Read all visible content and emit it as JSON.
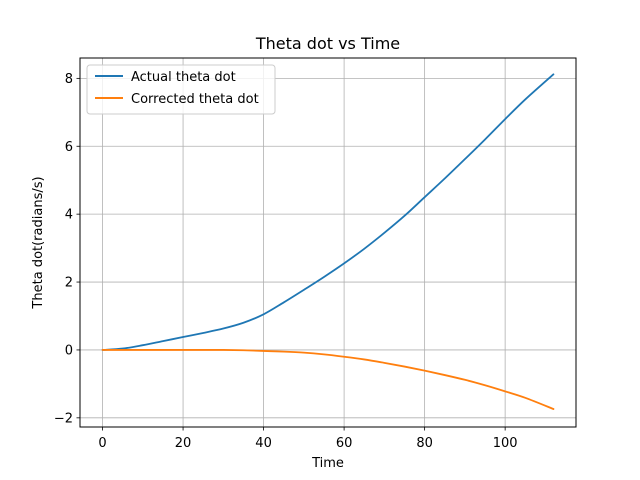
{
  "chart_data": {
    "type": "line",
    "title": "Theta dot vs Time",
    "xlabel": "Time",
    "ylabel": "Theta dot(radians/s)",
    "xlim": [
      -5.6,
      117.6
    ],
    "ylim": [
      -2.27,
      8.6
    ],
    "xticks": [
      0,
      20,
      40,
      60,
      80,
      100
    ],
    "yticks": [
      -2,
      0,
      2,
      4,
      6,
      8
    ],
    "xtick_labels": [
      "0",
      "20",
      "40",
      "60",
      "80",
      "100"
    ],
    "ytick_labels": [
      "−2",
      "0",
      "2",
      "4",
      "6",
      "8"
    ],
    "grid": true,
    "legend_position": "top-left",
    "series": [
      {
        "name": "Actual theta dot",
        "color": "#1f77b4",
        "x": [
          0,
          5,
          10,
          15,
          20,
          25,
          30,
          35,
          40,
          45,
          50,
          55,
          60,
          65,
          70,
          75,
          80,
          85,
          90,
          95,
          100,
          105,
          112
        ],
        "y": [
          0,
          0.04,
          0.14,
          0.26,
          0.38,
          0.5,
          0.63,
          0.8,
          1.05,
          1.4,
          1.77,
          2.15,
          2.55,
          2.98,
          3.45,
          3.95,
          4.5,
          5.05,
          5.62,
          6.2,
          6.8,
          7.38,
          8.12
        ]
      },
      {
        "name": "Corrected theta dot",
        "color": "#ff7f0e",
        "x": [
          0,
          5,
          10,
          15,
          20,
          25,
          30,
          35,
          40,
          45,
          50,
          55,
          60,
          65,
          70,
          75,
          80,
          85,
          90,
          95,
          100,
          105,
          112
        ],
        "y": [
          0,
          0,
          0,
          0,
          0,
          0,
          0,
          -0.01,
          -0.03,
          -0.05,
          -0.08,
          -0.13,
          -0.2,
          -0.28,
          -0.38,
          -0.49,
          -0.61,
          -0.74,
          -0.88,
          -1.04,
          -1.22,
          -1.41,
          -1.74
        ]
      }
    ]
  }
}
